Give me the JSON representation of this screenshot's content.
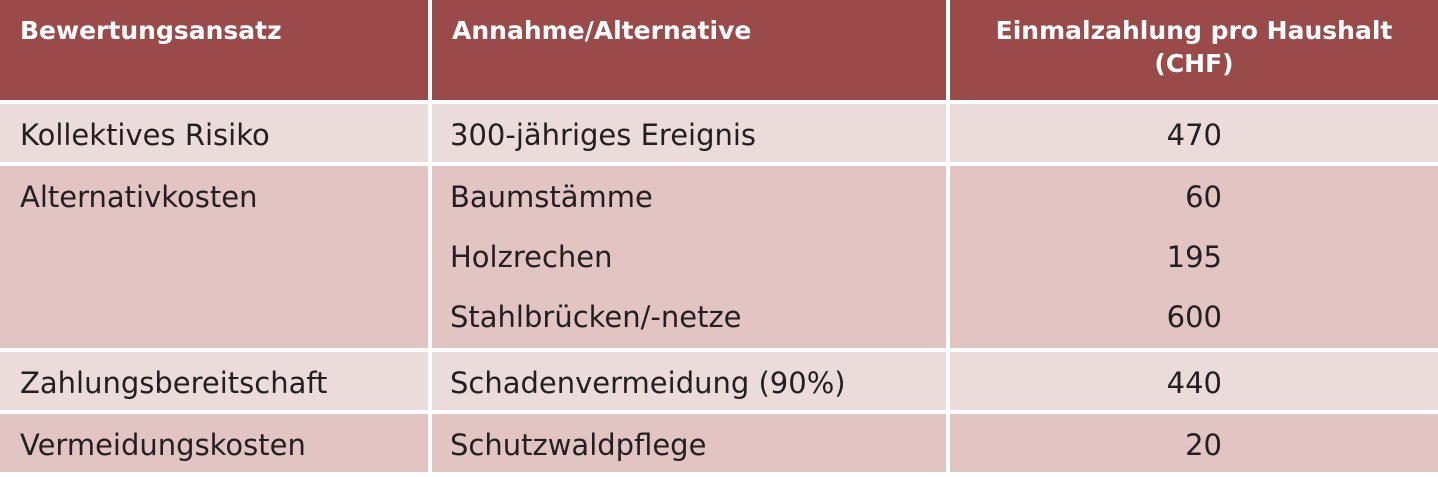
{
  "header": {
    "columns": [
      "Bewertungsansatz",
      "Annahme/Alternative",
      "Einmalzahlung pro Haushalt (CHF)"
    ]
  },
  "table": {
    "rows": [
      {
        "approach": "Kollektives Risiko",
        "entries": [
          {
            "alternative": "300-jähriges Ereignis",
            "value": 470
          }
        ]
      },
      {
        "approach": "Alternativkosten",
        "entries": [
          {
            "alternative": "Baumstämme",
            "value": 60
          },
          {
            "alternative": "Holzrechen",
            "value": 195
          },
          {
            "alternative": "Stahlbrücken/-netze",
            "value": 600
          }
        ]
      },
      {
        "approach": "Zahlungsbereitschaft",
        "entries": [
          {
            "alternative": "Schadenvermeidung (90%)",
            "value": 440
          }
        ]
      },
      {
        "approach": "Vermeidungskosten",
        "entries": [
          {
            "alternative": "Schutzwaldpflege",
            "value": 20
          }
        ]
      }
    ]
  }
}
